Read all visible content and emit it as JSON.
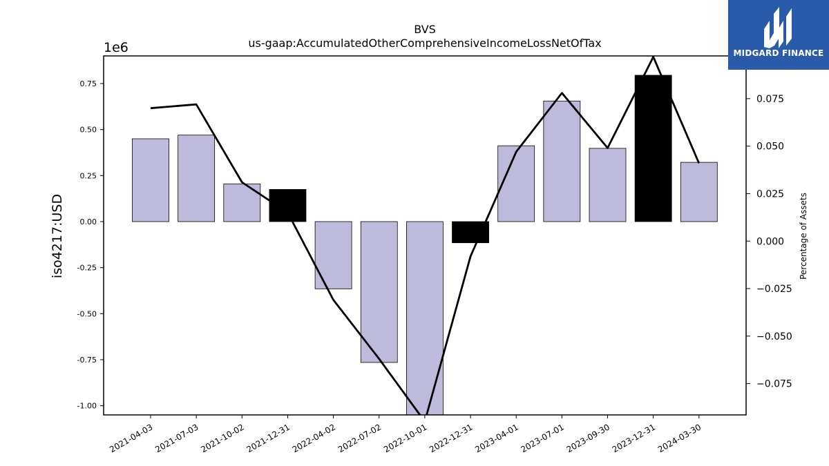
{
  "chart_data": {
    "type": "bar",
    "title": "BVS",
    "subtitle": "us-gaap:AccumulatedOtherComprehensiveIncomeLossNetOfTax",
    "ylabel": "iso4217:USD",
    "y_multiplier": "1e6",
    "y2label": "Percentage of Assets",
    "categories": [
      "2021-04-03",
      "2021-07-03",
      "2021-10-02",
      "2021-12-31",
      "2022-04-02",
      "2022-07-02",
      "2022-10-01",
      "2022-12-31",
      "2023-04-01",
      "2023-07-01",
      "2023-09-30",
      "2023-12-31",
      "2024-03-30"
    ],
    "series": [
      {
        "type": "bar",
        "values": [
          450000,
          470000,
          205000,
          175000,
          -365000,
          -765000,
          -1050000,
          -115000,
          412000,
          655000,
          398000,
          795000,
          322000
        ]
      },
      {
        "type": "line",
        "axis": "right",
        "values": [
          0.07,
          0.072,
          0.031,
          0.015,
          -0.031,
          -0.062,
          -0.095,
          -0.008,
          0.047,
          0.078,
          0.049,
          0.097,
          0.041
        ]
      }
    ],
    "highlighted_bars": [
      3,
      7,
      11
    ],
    "bar_color": "#bdbadb",
    "highlight_color": "#000000",
    "line_color": "#000000",
    "ylim": [
      -1050000,
      900000
    ],
    "y_ticks": [
      -1.0,
      -0.75,
      -0.5,
      -0.25,
      0.0,
      0.25,
      0.5,
      0.75
    ],
    "y2lim": [
      -0.0915,
      0.0975
    ],
    "y2_ticks": [
      -0.075,
      -0.05,
      -0.025,
      0.0,
      0.025,
      0.05,
      0.075,
      0.1
    ],
    "grid": false
  },
  "logo": {
    "text": "MIDGARD FINANCE",
    "icon": "midgard-m-icon",
    "color": "#2a5aaa"
  }
}
